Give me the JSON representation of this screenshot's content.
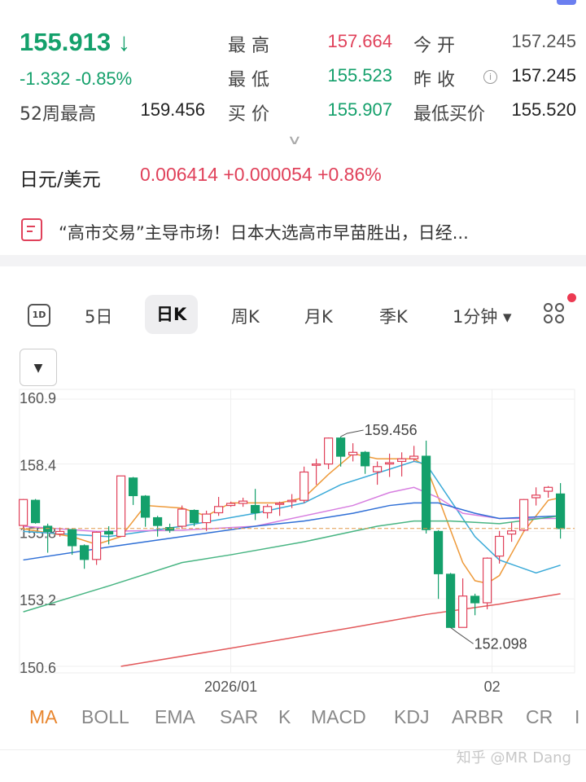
{
  "quote": {
    "price": "155.913",
    "arrow": "↓",
    "change": "-1.332",
    "change_pct": "-0.85%",
    "stats": [
      {
        "label": "最 高",
        "value": "157.664",
        "color": "red"
      },
      {
        "label": "今 开",
        "value": "157.245",
        "color": "gray"
      },
      {
        "label": "最 低",
        "value": "155.523",
        "color": "green"
      },
      {
        "label": "昨 收",
        "value": "157.245",
        "color": "dark"
      },
      {
        "label": "52周最高",
        "value": "159.456",
        "color": "dark"
      },
      {
        "label": "买 价",
        "value": "155.907",
        "color": "green"
      },
      {
        "label": "最低买价",
        "value": "155.520",
        "color": "dark"
      }
    ]
  },
  "expand_icon": "chevron-down-icon",
  "cross": {
    "pair": "日元/美元",
    "value": "0.006414 +0.000054 +0.86%"
  },
  "news": {
    "text": "“高市交易”主导市场！日本大选高市早苗胜出，日经..."
  },
  "tabs": {
    "oned": "1D",
    "items": [
      "5日",
      "日K",
      "周K",
      "月K",
      "季K",
      "1分钟 ▾"
    ],
    "active": "日K"
  },
  "dropdown": "▼",
  "indicators": {
    "items": [
      "MA",
      "BOLL",
      "EMA",
      "SAR",
      "K",
      "MACD",
      "KDJ",
      "ARBR",
      "CR",
      "I"
    ],
    "active": "MA"
  },
  "watermark": "知乎 @MR Dang",
  "colors": {
    "up": "#e0415a",
    "down": "#14a06b",
    "ma5": "#ee9a3a",
    "ma10": "#3aaad8",
    "ma20": "#d77ee0",
    "ma30": "#2f6fd6",
    "ma60": "#48b583",
    "ma120": "#e2585a"
  },
  "chart_data": {
    "type": "candlestick",
    "ylim": [
      150.6,
      160.9
    ],
    "y_ticks": [
      "160.9",
      "158.4",
      "155.8",
      "153.2",
      "150.6"
    ],
    "x_ticks": [
      {
        "label": "2026/01",
        "at_candle": 18
      },
      {
        "label": "02",
        "at_candle": 39.4
      }
    ],
    "last_price": 155.913,
    "annotations": [
      {
        "label": "159.456",
        "candle": 27,
        "value": 159.456
      },
      {
        "label": "152.098",
        "candle": 36,
        "value": 152.098
      }
    ],
    "ohlc": [
      [
        156.03,
        157.05,
        155.9,
        157.03
      ],
      [
        157.0,
        157.05,
        156.1,
        156.14
      ],
      [
        156.0,
        156.1,
        154.98,
        155.8
      ],
      [
        155.7,
        155.95,
        155.6,
        155.8
      ],
      [
        155.87,
        155.9,
        154.9,
        155.25
      ],
      [
        155.25,
        155.3,
        154.36,
        154.72
      ],
      [
        154.72,
        155.8,
        154.51,
        155.77
      ],
      [
        155.8,
        156.0,
        155.3,
        155.7
      ],
      [
        155.61,
        157.95,
        155.6,
        157.94
      ],
      [
        157.86,
        157.9,
        156.82,
        157.18
      ],
      [
        157.16,
        157.2,
        155.98,
        156.35
      ],
      [
        156.33,
        156.4,
        155.6,
        156.03
      ],
      [
        155.95,
        156.1,
        155.75,
        155.85
      ],
      [
        156.0,
        156.8,
        155.9,
        156.66
      ],
      [
        156.61,
        156.65,
        156.0,
        156.14
      ],
      [
        156.14,
        156.6,
        155.82,
        156.47
      ],
      [
        156.52,
        157.13,
        156.4,
        156.76
      ],
      [
        156.8,
        156.95,
        156.75,
        156.88
      ],
      [
        156.88,
        157.1,
        156.75,
        156.97
      ],
      [
        156.8,
        157.44,
        156.24,
        156.52
      ],
      [
        156.52,
        156.85,
        156.3,
        156.76
      ],
      [
        156.85,
        156.95,
        156.4,
        156.89
      ],
      [
        156.95,
        157.24,
        156.7,
        157.0
      ],
      [
        157.0,
        158.3,
        156.9,
        158.09
      ],
      [
        158.35,
        158.6,
        157.6,
        158.4
      ],
      [
        158.4,
        159.42,
        158.2,
        159.4
      ],
      [
        159.4,
        159.456,
        158.3,
        158.7
      ],
      [
        158.75,
        159.2,
        158.5,
        158.85
      ],
      [
        158.85,
        158.9,
        158.02,
        158.33
      ],
      [
        158.1,
        158.5,
        157.6,
        158.3
      ],
      [
        158.4,
        158.8,
        157.9,
        158.45
      ],
      [
        158.5,
        158.85,
        157.92,
        158.6
      ],
      [
        158.6,
        159.1,
        158.5,
        158.7
      ],
      [
        158.7,
        159.3,
        155.72,
        155.87
      ],
      [
        155.8,
        155.85,
        153.2,
        154.17
      ],
      [
        154.15,
        154.2,
        152.098,
        152.1
      ],
      [
        152.1,
        153.99,
        152.1,
        153.31
      ],
      [
        153.3,
        153.4,
        152.57,
        153.05
      ],
      [
        153.05,
        154.8,
        152.8,
        154.77
      ],
      [
        154.85,
        155.82,
        154.56,
        155.61
      ],
      [
        155.7,
        156.14,
        155.4,
        155.82
      ],
      [
        155.85,
        157.05,
        155.8,
        157.03
      ],
      [
        157.1,
        157.5,
        156.8,
        157.2
      ],
      [
        157.35,
        157.55,
        157.1,
        157.5
      ],
      [
        157.245,
        157.664,
        155.523,
        155.913
      ]
    ],
    "ma": [
      {
        "key": "ma5",
        "points": [
          [
            1,
            155.9
          ],
          [
            5,
            155.6
          ],
          [
            7,
            155.3
          ],
          [
            9,
            155.6
          ],
          [
            11,
            156.8
          ],
          [
            14,
            156.7
          ],
          [
            16,
            156.4
          ],
          [
            18,
            156.9
          ],
          [
            22,
            156.9
          ],
          [
            24,
            157.1
          ],
          [
            26,
            158.0
          ],
          [
            28,
            158.8
          ],
          [
            30,
            158.6
          ],
          [
            33,
            158.6
          ],
          [
            34,
            158.3
          ],
          [
            35,
            157.1
          ],
          [
            37,
            154.6
          ],
          [
            38,
            153.9
          ],
          [
            39,
            153.8
          ],
          [
            40,
            154.1
          ],
          [
            42,
            155.8
          ],
          [
            44,
            157.0
          ],
          [
            45,
            157.1
          ]
        ]
      },
      {
        "key": "ma10",
        "points": [
          [
            1,
            155.8
          ],
          [
            8,
            155.6
          ],
          [
            14,
            156.0
          ],
          [
            20,
            156.5
          ],
          [
            24,
            156.9
          ],
          [
            27,
            157.6
          ],
          [
            31,
            158.2
          ],
          [
            33,
            158.5
          ],
          [
            34,
            158.4
          ],
          [
            36,
            157.0
          ],
          [
            38,
            155.6
          ],
          [
            40,
            154.7
          ],
          [
            43,
            154.2
          ],
          [
            45,
            154.5
          ]
        ]
      },
      {
        "key": "ma20",
        "points": [
          [
            1,
            156.0
          ],
          [
            7,
            155.8
          ],
          [
            14,
            155.85
          ],
          [
            20,
            156.0
          ],
          [
            24,
            156.4
          ],
          [
            28,
            156.8
          ],
          [
            31,
            157.3
          ],
          [
            33,
            157.5
          ],
          [
            35,
            157.1
          ],
          [
            37,
            156.5
          ],
          [
            40,
            156.3
          ],
          [
            45,
            156.3
          ]
        ]
      },
      {
        "key": "ma30",
        "points": [
          [
            1,
            154.7
          ],
          [
            8,
            155.2
          ],
          [
            14,
            155.6
          ],
          [
            20,
            156.0
          ],
          [
            24,
            156.2
          ],
          [
            28,
            156.5
          ],
          [
            31,
            156.8
          ],
          [
            33,
            156.9
          ],
          [
            35,
            156.9
          ],
          [
            38,
            156.5
          ],
          [
            40,
            156.3
          ],
          [
            45,
            156.4
          ]
        ]
      },
      {
        "key": "ma60",
        "points": [
          [
            1,
            152.7
          ],
          [
            8,
            153.7
          ],
          [
            14,
            154.6
          ],
          [
            18,
            154.9
          ],
          [
            24,
            155.4
          ],
          [
            30,
            156.0
          ],
          [
            33,
            156.2
          ],
          [
            36,
            156.2
          ],
          [
            40,
            156.1
          ],
          [
            45,
            156.4
          ]
        ]
      },
      {
        "key": "ma120",
        "points": [
          [
            9,
            150.6
          ],
          [
            18,
            151.3
          ],
          [
            28,
            152.1
          ],
          [
            34,
            152.6
          ],
          [
            40,
            153.0
          ],
          [
            45,
            153.4
          ]
        ]
      }
    ]
  }
}
